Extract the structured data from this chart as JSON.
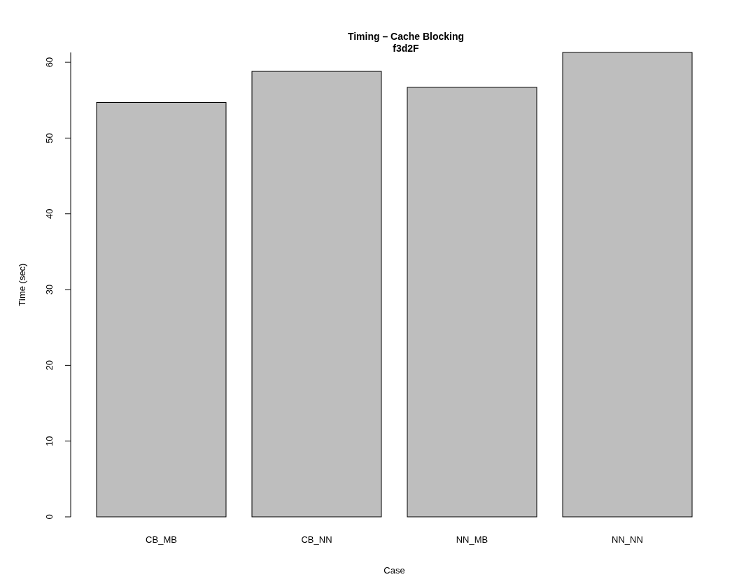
{
  "chart_data": {
    "type": "bar",
    "title": "Timing – Cache Blocking",
    "subtitle": "f3d2F",
    "xlabel": "Case",
    "ylabel": "Time (sec)",
    "categories": [
      "CB_MB",
      "CB_NN",
      "NN_MB",
      "NN_NN"
    ],
    "values": [
      54.7,
      58.8,
      56.7,
      61.3
    ],
    "color": "#bebebe",
    "ylim": [
      0,
      61.3
    ],
    "yticks": [
      0,
      10,
      20,
      30,
      40,
      50,
      60
    ]
  }
}
